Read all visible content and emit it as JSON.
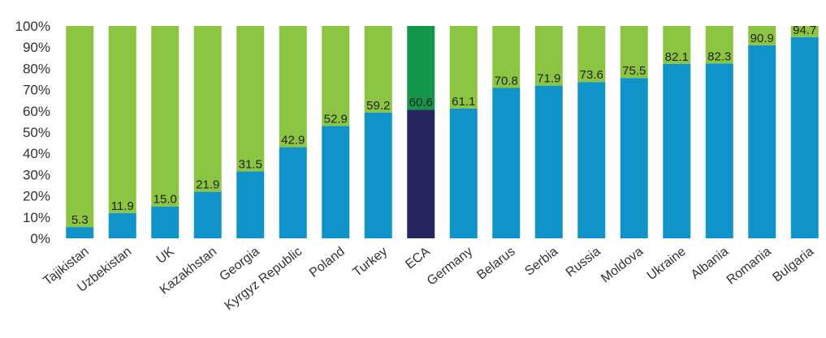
{
  "chart_data": {
    "type": "bar",
    "stacked": true,
    "categories": [
      "Tajikistan",
      "Uzbekistan",
      "UK",
      "Kazakhstan",
      "Georgia",
      "Kyrgyz Republic",
      "Poland",
      "Turkey",
      "ECA",
      "Germany",
      "Belarus",
      "Serbia",
      "Russia",
      "Moldova",
      "Ukraine",
      "Albania",
      "Romania",
      "Bulgaria"
    ],
    "series": [
      {
        "values": [
          5.3,
          11.9,
          15.0,
          21.9,
          31.5,
          42.9,
          52.9,
          59.2,
          60.6,
          61.1,
          70.8,
          71.9,
          73.6,
          75.5,
          82.1,
          82.3,
          90.9,
          94.7
        ]
      },
      {
        "values": [
          94.7,
          88.1,
          85.0,
          78.1,
          68.5,
          57.1,
          47.1,
          40.8,
          39.4,
          38.9,
          29.2,
          28.1,
          26.4,
          24.5,
          17.9,
          17.7,
          9.1,
          5.3
        ]
      }
    ],
    "data_labels": [
      "5.3",
      "11.9",
      "15.0",
      "21.9",
      "31.5",
      "42.9",
      "52.9",
      "59.2",
      "60.6",
      "61.1",
      "70.8",
      "71.9",
      "73.6",
      "75.5",
      "82.1",
      "82.3",
      "90.9",
      "94.7"
    ],
    "y_ticks": [
      "0%",
      "10%",
      "20%",
      "30%",
      "40%",
      "50%",
      "60%",
      "70%",
      "80%",
      "90%",
      "100%"
    ],
    "ylim": [
      0,
      100
    ],
    "highlight_category": "ECA",
    "colors": {
      "bottom": "#0f93c8",
      "top": "#8cc542",
      "highlight_bottom": "#27255e",
      "highlight_top": "#14964a"
    },
    "title": "",
    "xlabel": "",
    "ylabel": "",
    "grid": false,
    "legend": "none"
  }
}
